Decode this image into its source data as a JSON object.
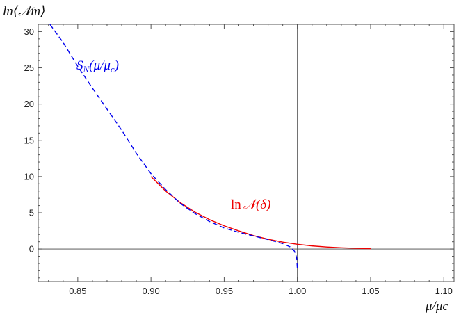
{
  "chart_data": {
    "type": "line",
    "title": "",
    "ylabel": "ln⟨𝒩m⟩",
    "xlabel": "μ/μc",
    "xlim": [
      0.823,
      1.107
    ],
    "ylim": [
      -4.5,
      31
    ],
    "x_ticks": [
      0.85,
      0.9,
      0.95,
      1.0,
      1.05,
      1.1
    ],
    "x_tick_labels": [
      "0.85",
      "0.90",
      "0.95",
      "1.00",
      "1.05",
      "1.10"
    ],
    "y_ticks": [
      0,
      5,
      10,
      15,
      20,
      25,
      30
    ],
    "y_tick_labels": [
      "0",
      "5",
      "10",
      "15",
      "20",
      "25",
      "30"
    ],
    "reference_lines": {
      "horizontal_y": 0,
      "vertical_x": 1.0
    },
    "series": [
      {
        "name": "S_N(μ/μc)",
        "label_parts": {
          "main": "S",
          "sub": "N",
          "args": "(μ/μ",
          "args_sub": "c",
          "close": ")"
        },
        "color": "#0000ee",
        "style": "dashed",
        "points": [
          [
            0.831,
            31.0
          ],
          [
            0.84,
            28.5
          ],
          [
            0.85,
            25.2
          ],
          [
            0.86,
            22.2
          ],
          [
            0.87,
            19.3
          ],
          [
            0.88,
            16.4
          ],
          [
            0.89,
            13.2
          ],
          [
            0.9,
            10.4
          ],
          [
            0.91,
            8.2
          ],
          [
            0.92,
            6.3
          ],
          [
            0.93,
            4.9
          ],
          [
            0.94,
            3.8
          ],
          [
            0.95,
            2.9
          ],
          [
            0.96,
            2.3
          ],
          [
            0.97,
            1.8
          ],
          [
            0.98,
            1.3
          ],
          [
            0.99,
            0.75
          ],
          [
            0.995,
            0.3
          ],
          [
            0.998,
            -0.3
          ],
          [
            0.9995,
            -1.2
          ],
          [
            1.0,
            -2.8
          ]
        ]
      },
      {
        "name": "lnN(δ)",
        "label_parts": {
          "fn": "ln",
          "main": "𝒩",
          "args": "(δ)"
        },
        "color": "#ee0000",
        "style": "solid",
        "points": [
          [
            0.9,
            10.0
          ],
          [
            0.91,
            8.0
          ],
          [
            0.92,
            6.4
          ],
          [
            0.93,
            5.1
          ],
          [
            0.94,
            4.05
          ],
          [
            0.95,
            3.2
          ],
          [
            0.96,
            2.5
          ],
          [
            0.97,
            1.85
          ],
          [
            0.98,
            1.35
          ],
          [
            0.99,
            0.95
          ],
          [
            1.0,
            0.65
          ],
          [
            1.01,
            0.43
          ],
          [
            1.02,
            0.28
          ],
          [
            1.03,
            0.17
          ],
          [
            1.04,
            0.1
          ],
          [
            1.05,
            0.05
          ]
        ]
      }
    ]
  }
}
